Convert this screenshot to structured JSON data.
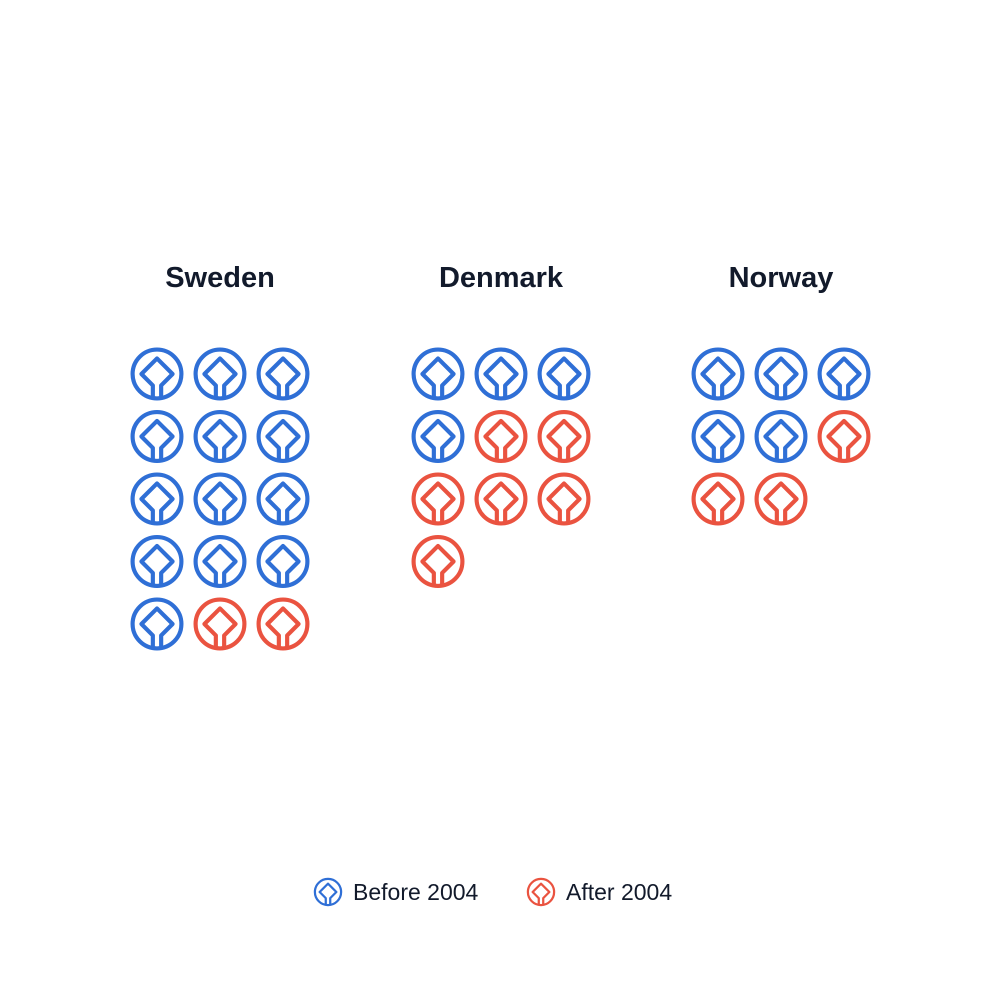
{
  "chart_data": {
    "type": "pictogram",
    "unit": "world-heritage-emblem-icon",
    "categories": [
      "Sweden",
      "Denmark",
      "Norway"
    ],
    "series": [
      {
        "name": "Before 2004",
        "values": [
          13,
          4,
          5
        ],
        "color": "#2f6fd6"
      },
      {
        "name": "After 2004",
        "values": [
          2,
          6,
          3
        ],
        "color": "#ea5340"
      }
    ],
    "columns_per_group": 3,
    "legend_position": "bottom-center",
    "grid": false
  }
}
